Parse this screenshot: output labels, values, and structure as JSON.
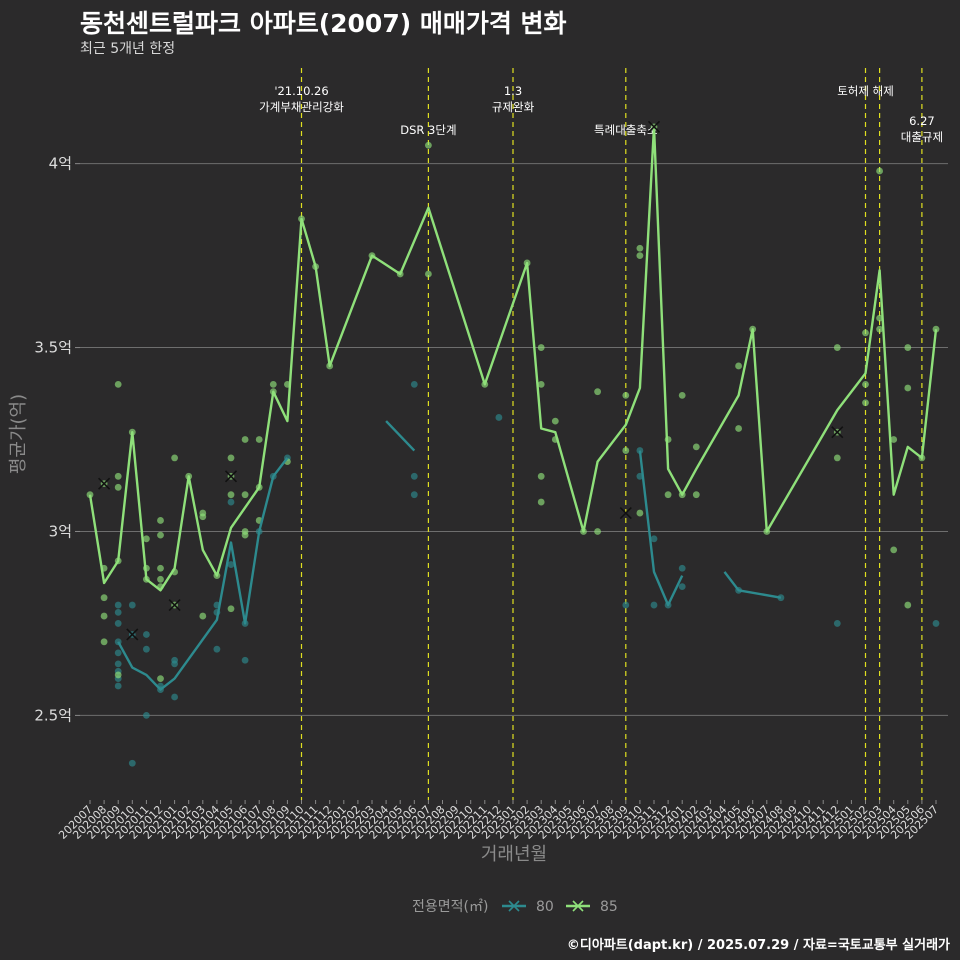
{
  "header": {
    "title": "동천센트럴파크 아파트(2007) 매매가격 변화",
    "subtitle": "최근 5개년 한정"
  },
  "caption": "©디아파트(dapt.kr) / 2025.07.29 / 자료=국토교통부 실거래가",
  "colors": {
    "background": "#2b2a2b",
    "grid": "#6e6e6e",
    "event_line": "#e0e020",
    "series_80": "#2d8a8e",
    "series_85": "#8fe07a"
  },
  "chart_data": {
    "type": "line",
    "xlabel": "거래년월",
    "ylabel": "평균가(억)",
    "ylim": [
      2.27,
      4.26
    ],
    "y_ticks": [
      2.5,
      3,
      3.5,
      4
    ],
    "y_tick_labels": [
      "2.5억",
      "3억",
      "3.5억",
      "4억"
    ],
    "grid": true,
    "legend": {
      "title": "전용면적(㎡)",
      "position": "bottom"
    },
    "categories": [
      "202007",
      "202008",
      "202009",
      "202010",
      "202011",
      "202012",
      "202101",
      "202102",
      "202103",
      "202104",
      "202105",
      "202106",
      "202107",
      "202108",
      "202109",
      "202110",
      "202111",
      "202112",
      "202201",
      "202202",
      "202203",
      "202204",
      "202205",
      "202206",
      "202207",
      "202208",
      "202209",
      "202210",
      "202211",
      "202212",
      "202301",
      "202302",
      "202303",
      "202304",
      "202305",
      "202306",
      "202307",
      "202308",
      "202309",
      "202310",
      "202311",
      "202312",
      "202401",
      "202402",
      "202403",
      "202404",
      "202405",
      "202406",
      "202407",
      "202408",
      "202409",
      "202410",
      "202411",
      "202412",
      "202501",
      "202502",
      "202503",
      "202504",
      "202505",
      "202506",
      "202507"
    ],
    "series": [
      {
        "name": "80",
        "color": "#2d8a8e",
        "segments": [
          [
            [
              "202009",
              2.7
            ],
            [
              "202010",
              2.63
            ],
            [
              "202011",
              2.61
            ],
            [
              "202012",
              2.57
            ],
            [
              "202101",
              2.6
            ],
            [
              "202104",
              2.76
            ],
            [
              "202105",
              2.97
            ],
            [
              "202106",
              2.75
            ],
            [
              "202107",
              3.0
            ],
            [
              "202108",
              3.15
            ],
            [
              "202109",
              3.2
            ]
          ],
          [
            [
              "202204",
              3.3
            ],
            [
              "202206",
              3.22
            ]
          ],
          [
            [
              "202310",
              3.22
            ],
            [
              "202311",
              2.89
            ],
            [
              "202312",
              2.8
            ],
            [
              "202401",
              2.88
            ]
          ],
          [
            [
              "202404",
              2.89
            ],
            [
              "202405",
              2.84
            ],
            [
              "202408",
              2.82
            ]
          ]
        ],
        "points": [
          [
            "202009",
            2.8
          ],
          [
            "202009",
            2.78
          ],
          [
            "202009",
            2.75
          ],
          [
            "202009",
            2.7
          ],
          [
            "202009",
            2.67
          ],
          [
            "202009",
            2.64
          ],
          [
            "202009",
            2.62
          ],
          [
            "202009",
            2.6
          ],
          [
            "202009",
            2.58
          ],
          [
            "202010",
            2.8
          ],
          [
            "202010",
            2.72
          ],
          [
            "202010",
            2.37
          ],
          [
            "202011",
            2.72
          ],
          [
            "202011",
            2.68
          ],
          [
            "202011",
            2.5
          ],
          [
            "202012",
            2.57
          ],
          [
            "202012",
            2.58
          ],
          [
            "202101",
            2.65
          ],
          [
            "202101",
            2.64
          ],
          [
            "202101",
            2.55
          ],
          [
            "202104",
            2.8
          ],
          [
            "202104",
            2.78
          ],
          [
            "202104",
            2.68
          ],
          [
            "202105",
            3.08
          ],
          [
            "202105",
            2.91
          ],
          [
            "202106",
            2.75
          ],
          [
            "202106",
            2.65
          ],
          [
            "202107",
            3.0
          ],
          [
            "202108",
            3.15
          ],
          [
            "202109",
            3.2
          ],
          [
            "202206",
            3.4
          ],
          [
            "202206",
            3.15
          ],
          [
            "202206",
            3.1
          ],
          [
            "202212",
            3.31
          ],
          [
            "202309",
            2.8
          ],
          [
            "202310",
            3.22
          ],
          [
            "202310",
            3.15
          ],
          [
            "202311",
            2.98
          ],
          [
            "202311",
            2.8
          ],
          [
            "202312",
            2.8
          ],
          [
            "202401",
            2.9
          ],
          [
            "202401",
            2.85
          ],
          [
            "202405",
            2.84
          ],
          [
            "202408",
            2.82
          ],
          [
            "202412",
            2.75
          ],
          [
            "202507",
            2.75
          ]
        ]
      },
      {
        "name": "85",
        "color": "#8fe07a",
        "segments": [
          [
            [
              "202007",
              3.1
            ],
            [
              "202008",
              2.86
            ],
            [
              "202009",
              2.92
            ],
            [
              "202010",
              3.27
            ],
            [
              "202011",
              2.87
            ],
            [
              "202012",
              2.84
            ],
            [
              "202101",
              2.9
            ],
            [
              "202102",
              3.15
            ],
            [
              "202103",
              2.95
            ],
            [
              "202104",
              2.88
            ],
            [
              "202105",
              3.01
            ],
            [
              "202107",
              3.12
            ],
            [
              "202108",
              3.38
            ],
            [
              "202109",
              3.3
            ],
            [
              "202110",
              3.85
            ],
            [
              "202111",
              3.72
            ],
            [
              "202112",
              3.45
            ],
            [
              "202203",
              3.75
            ],
            [
              "202205",
              3.7
            ],
            [
              "202207",
              3.88
            ],
            [
              "202211",
              3.4
            ],
            [
              "202302",
              3.73
            ],
            [
              "202303",
              3.28
            ],
            [
              "202304",
              3.27
            ],
            [
              "202306",
              3.0
            ],
            [
              "202307",
              3.19
            ],
            [
              "202309",
              3.29
            ],
            [
              "202310",
              3.39
            ],
            [
              "202311",
              4.1
            ],
            [
              "202312",
              3.17
            ],
            [
              "202401",
              3.1
            ],
            [
              "202402",
              3.17
            ],
            [
              "202405",
              3.37
            ],
            [
              "202406",
              3.55
            ],
            [
              "202407",
              3.0
            ],
            [
              "202412",
              3.33
            ],
            [
              "202502",
              3.43
            ],
            [
              "202503",
              3.71
            ],
            [
              "202504",
              3.1
            ],
            [
              "202505",
              3.23
            ],
            [
              "202506",
              3.2
            ],
            [
              "202507",
              3.55
            ]
          ]
        ],
        "points": [
          [
            "202007",
            3.1
          ],
          [
            "202008",
            3.13
          ],
          [
            "202008",
            2.9
          ],
          [
            "202008",
            2.82
          ],
          [
            "202008",
            2.77
          ],
          [
            "202008",
            2.7
          ],
          [
            "202009",
            3.4
          ],
          [
            "202009",
            3.15
          ],
          [
            "202009",
            3.12
          ],
          [
            "202009",
            2.92
          ],
          [
            "202009",
            2.61
          ],
          [
            "202010",
            3.27
          ],
          [
            "202011",
            2.98
          ],
          [
            "202011",
            2.9
          ],
          [
            "202011",
            2.87
          ],
          [
            "202012",
            3.03
          ],
          [
            "202012",
            2.99
          ],
          [
            "202012",
            2.9
          ],
          [
            "202012",
            2.87
          ],
          [
            "202012",
            2.85
          ],
          [
            "202012",
            2.6
          ],
          [
            "202101",
            3.2
          ],
          [
            "202101",
            2.89
          ],
          [
            "202101",
            2.8
          ],
          [
            "202102",
            3.15
          ],
          [
            "202103",
            3.05
          ],
          [
            "202103",
            3.04
          ],
          [
            "202103",
            2.77
          ],
          [
            "202104",
            2.88
          ],
          [
            "202105",
            3.2
          ],
          [
            "202105",
            3.15
          ],
          [
            "202105",
            3.1
          ],
          [
            "202105",
            2.79
          ],
          [
            "202106",
            3.25
          ],
          [
            "202106",
            3.1
          ],
          [
            "202106",
            3.0
          ],
          [
            "202106",
            2.99
          ],
          [
            "202107",
            3.25
          ],
          [
            "202107",
            3.12
          ],
          [
            "202107",
            3.03
          ],
          [
            "202108",
            3.4
          ],
          [
            "202108",
            3.38
          ],
          [
            "202109",
            3.4
          ],
          [
            "202109",
            3.19
          ],
          [
            "202110",
            3.85
          ],
          [
            "202111",
            3.72
          ],
          [
            "202112",
            3.45
          ],
          [
            "202203",
            3.75
          ],
          [
            "202205",
            3.7
          ],
          [
            "202207",
            4.05
          ],
          [
            "202207",
            3.7
          ],
          [
            "202211",
            3.4
          ],
          [
            "202302",
            3.73
          ],
          [
            "202303",
            3.5
          ],
          [
            "202303",
            3.4
          ],
          [
            "202303",
            3.15
          ],
          [
            "202303",
            3.08
          ],
          [
            "202304",
            3.3
          ],
          [
            "202304",
            3.25
          ],
          [
            "202306",
            3.0
          ],
          [
            "202307",
            3.38
          ],
          [
            "202307",
            3.0
          ],
          [
            "202309",
            3.37
          ],
          [
            "202309",
            3.22
          ],
          [
            "202310",
            3.77
          ],
          [
            "202310",
            3.75
          ],
          [
            "202310",
            3.05
          ],
          [
            "202311",
            4.1
          ],
          [
            "202312",
            3.25
          ],
          [
            "202312",
            3.1
          ],
          [
            "202401",
            3.37
          ],
          [
            "202401",
            3.1
          ],
          [
            "202402",
            3.23
          ],
          [
            "202402",
            3.1
          ],
          [
            "202405",
            3.45
          ],
          [
            "202405",
            3.28
          ],
          [
            "202406",
            3.55
          ],
          [
            "202407",
            3.0
          ],
          [
            "202412",
            3.5
          ],
          [
            "202412",
            3.27
          ],
          [
            "202412",
            3.2
          ],
          [
            "202502",
            3.54
          ],
          [
            "202502",
            3.4
          ],
          [
            "202502",
            3.35
          ],
          [
            "202503",
            3.98
          ],
          [
            "202503",
            3.58
          ],
          [
            "202503",
            3.55
          ],
          [
            "202504",
            3.25
          ],
          [
            "202504",
            2.95
          ],
          [
            "202505",
            3.5
          ],
          [
            "202505",
            3.39
          ],
          [
            "202505",
            2.8
          ],
          [
            "202506",
            3.2
          ],
          [
            "202507",
            3.55
          ]
        ]
      }
    ],
    "cross_markers": [
      {
        "series": "80",
        "x": "202010",
        "y": 2.72
      },
      {
        "series": "80",
        "x": "202101",
        "y": 2.8
      },
      {
        "series": "80",
        "x": "202105",
        "y": 3.15
      },
      {
        "series": "80",
        "x": "202309",
        "y": 3.05
      },
      {
        "series": "85",
        "x": "202008",
        "y": 3.13
      },
      {
        "series": "85",
        "x": "202311",
        "y": 4.1
      },
      {
        "series": "85",
        "x": "202412",
        "y": 3.27
      }
    ],
    "events": [
      {
        "x": "202110",
        "lines": [
          "'21.10.26",
          "가계부채관리강화"
        ],
        "level": 0
      },
      {
        "x": "202207",
        "lines": [
          "DSR 3단계"
        ],
        "level": 1
      },
      {
        "x": "202301",
        "lines": [
          "1.3",
          "규제완화"
        ],
        "level": 0
      },
      {
        "x": "202309",
        "lines": [
          "특례대출축소"
        ],
        "level": 1
      },
      {
        "x": "202502",
        "lines": [
          "토허제 해제"
        ],
        "level": 0
      },
      {
        "x": "202503",
        "lines": [],
        "level": 0
      },
      {
        "x": "202506",
        "lines": [
          "6.27",
          "대출규제"
        ],
        "level": 2
      }
    ]
  }
}
